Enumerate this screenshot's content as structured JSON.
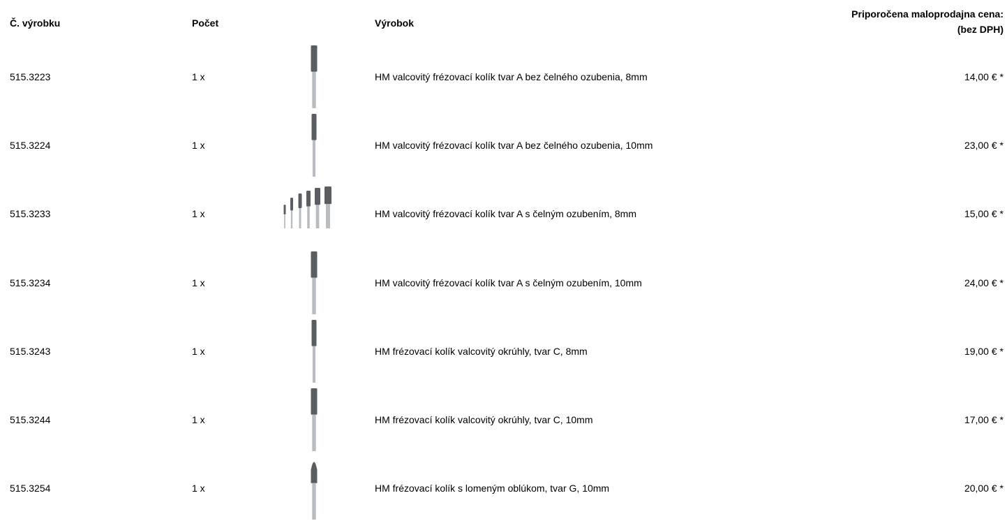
{
  "table": {
    "headers": [
      "Č. výrobku",
      "Počet",
      "Výrobok",
      [
        "Priporočena maloprodajna cena:",
        "(bez DPH)"
      ]
    ],
    "rows": [
      [
        "515.3223",
        "1 x",
        "HM valcovitý frézovací kolík tvar A bez čelného ozubenia, 8mm",
        "14,00 € *"
      ],
      [
        "515.3224",
        "1 x",
        "HM valcovitý frézovací kolík tvar A bez čelného ozubenia, 10mm",
        "23,00 € *"
      ],
      [
        "515.3233",
        "1 x",
        "HM valcovitý frézovací kolík tvar A s čelným ozubením, 8mm",
        "15,00 € *"
      ],
      [
        "515.3234",
        "1 x",
        "HM valcovitý frézovací kolík tvar A s čelným ozubením, 10mm",
        "24,00 € *"
      ],
      [
        "515.3243",
        "1 x",
        "HM frézovací kolík valcovitý okrúhly, tvar C, 8mm",
        "19,00 € *"
      ],
      [
        "515.3244",
        "1 x",
        "HM frézovací kolík valcovitý okrúhly, tvar C, 10mm",
        "17,00 € *"
      ],
      [
        "515.3254",
        "1 x",
        "HM frézovací kolík s lomeným oblúkom, tvar G, 10mm",
        "20,00 € *"
      ]
    ]
  }
}
